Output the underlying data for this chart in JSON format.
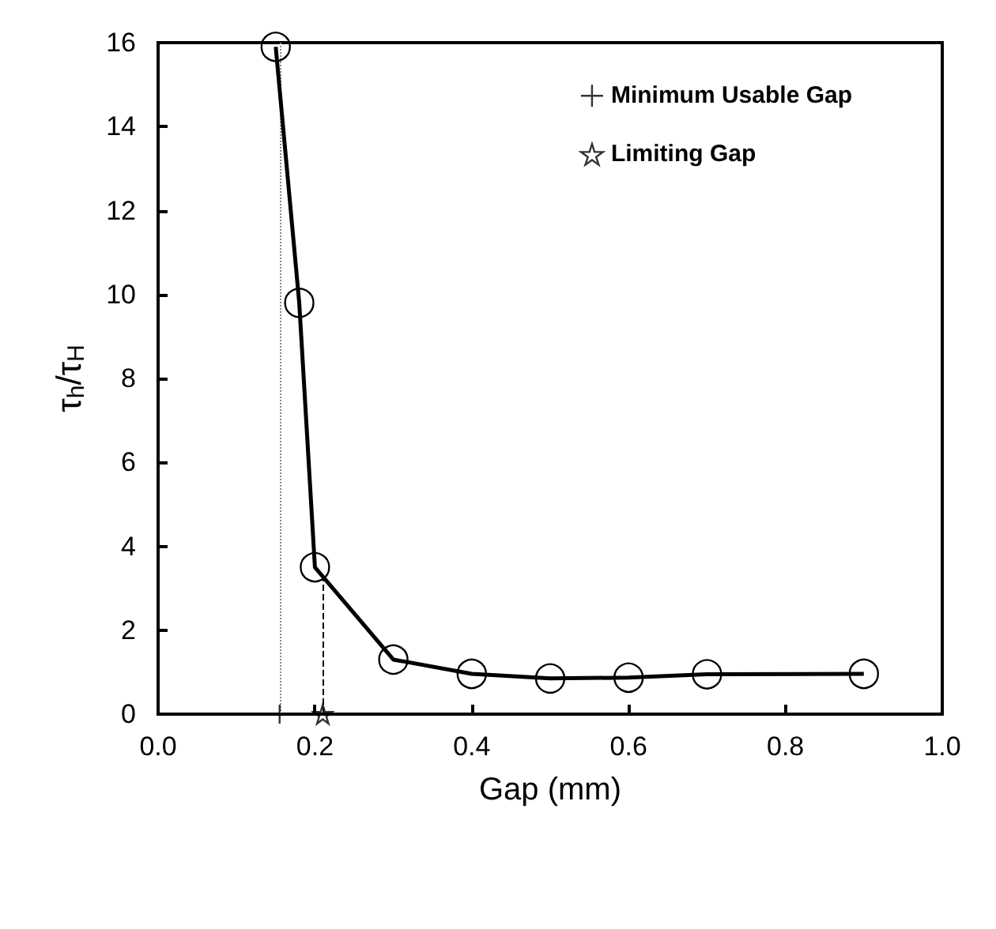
{
  "chart_data": {
    "type": "line",
    "xlabel": "Gap (mm)",
    "ylabel": "τ$_{h}$/τ$_{H}$",
    "x": [
      0.15,
      0.18,
      0.2,
      0.3,
      0.4,
      0.5,
      0.6,
      0.7,
      0.9
    ],
    "series": [
      {
        "color": "#000000",
        "values": [
          15.9,
          9.8,
          3.5,
          1.3,
          0.96,
          0.85,
          0.87,
          0.95,
          0.96
        ],
        "marker": "circle"
      },
      {
        "name": "Minimum Usable Gap",
        "type": "scatter",
        "color": "#000000",
        "x": [
          0.155
        ],
        "values": [
          0
        ],
        "marker": "cross"
      },
      {
        "name": "Limiting Gap",
        "type": "scatter",
        "color": "#000000",
        "x": [
          0.21
        ],
        "values": [
          0
        ],
        "marker": "star"
      }
    ],
    "ref_lines": [
      {
        "axis": "x",
        "value": 0.155,
        "line_style": "dotted",
        "color": "#888888"
      },
      {
        "axis": "x",
        "value": 0.21,
        "line_style": "dashed",
        "color": "#000000"
      }
    ],
    "xlim": [
      0,
      1
    ],
    "xticks": [
      {
        "value": 0,
        "label": "0.0"
      },
      0.2,
      0.4,
      0.6,
      0.8,
      {
        "value": 1,
        "label": "1.0"
      }
    ],
    "ylim": [
      0,
      16
    ],
    "yticks": [
      0,
      2,
      4,
      6,
      8,
      10,
      12,
      14,
      16
    ],
    "grid": false,
    "legend": "top right"
  }
}
